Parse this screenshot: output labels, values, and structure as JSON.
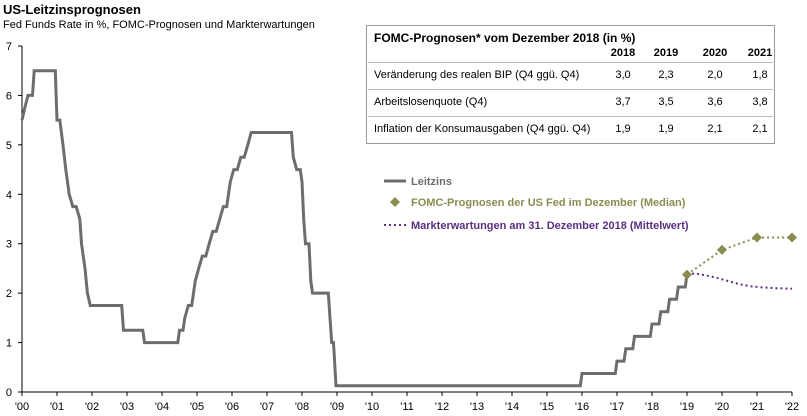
{
  "header": {
    "title": "US-Leitzinsprognosen",
    "subtitle": "Fed Funds Rate in %, FOMC-Prognosen und Markterwartungen"
  },
  "table": {
    "title": "FOMC-Prognosen* vom Dezember 2018 (in %)",
    "years": [
      "2018",
      "2019",
      "2020",
      "2021"
    ],
    "rows": [
      {
        "label": "Veränderung des realen BIP (Q4 ggü. Q4)",
        "values": [
          "3,0",
          "2,3",
          "2,0",
          "1,8"
        ]
      },
      {
        "label": "Arbeitslosenquote (Q4)",
        "values": [
          "3,7",
          "3,5",
          "3,6",
          "3,8"
        ]
      },
      {
        "label": "Inflation der Konsumausgaben (Q4 ggü. Q4)",
        "values": [
          "1,9",
          "1,9",
          "2,1",
          "2,1"
        ]
      }
    ]
  },
  "colors": {
    "leitzins": "#6d6d6d",
    "fomc": "#8a8c50",
    "markt": "#5b2f82"
  },
  "chart_data": {
    "type": "line",
    "x_tick_labels": [
      "'00",
      "'01",
      "'02",
      "'03",
      "'04",
      "'05",
      "'06",
      "'07",
      "'08",
      "'09",
      "'10",
      "'11",
      "'12",
      "'13",
      "'14",
      "'15",
      "'16",
      "'17",
      "'18",
      "'19",
      "'20",
      "'21",
      "'22"
    ],
    "x_range": [
      2000,
      2022
    ],
    "y_ticks": [
      "0",
      "1",
      "2",
      "3",
      "4",
      "5",
      "6",
      "7"
    ],
    "ylim": [
      0,
      7
    ],
    "legend": [
      {
        "label": "Leitzins",
        "color": "#6d6d6d"
      },
      {
        "label": "FOMC-Prognosen der US Fed im Dezember (Median)",
        "color": "#8a8c50"
      },
      {
        "label": "Markterwartungen am 31. Dezember 2018 (Mittelwert)",
        "color": "#5b2f82"
      }
    ],
    "series": [
      {
        "name": "Leitzins",
        "points": [
          [
            2000.0,
            5.5
          ],
          [
            2000.08,
            5.75
          ],
          [
            2000.17,
            6.0
          ],
          [
            2000.3,
            6.0
          ],
          [
            2000.35,
            6.5
          ],
          [
            2000.95,
            6.5
          ],
          [
            2001.0,
            5.5
          ],
          [
            2001.08,
            5.5
          ],
          [
            2001.17,
            5.0
          ],
          [
            2001.25,
            4.5
          ],
          [
            2001.35,
            4.0
          ],
          [
            2001.45,
            3.75
          ],
          [
            2001.55,
            3.75
          ],
          [
            2001.65,
            3.5
          ],
          [
            2001.7,
            3.0
          ],
          [
            2001.8,
            2.5
          ],
          [
            2001.87,
            2.0
          ],
          [
            2001.95,
            1.75
          ],
          [
            2002.85,
            1.75
          ],
          [
            2002.9,
            1.25
          ],
          [
            2003.45,
            1.25
          ],
          [
            2003.5,
            1.0
          ],
          [
            2004.45,
            1.0
          ],
          [
            2004.5,
            1.25
          ],
          [
            2004.6,
            1.25
          ],
          [
            2004.65,
            1.5
          ],
          [
            2004.75,
            1.75
          ],
          [
            2004.85,
            1.75
          ],
          [
            2004.95,
            2.25
          ],
          [
            2005.05,
            2.5
          ],
          [
            2005.15,
            2.75
          ],
          [
            2005.25,
            2.75
          ],
          [
            2005.35,
            3.0
          ],
          [
            2005.45,
            3.25
          ],
          [
            2005.55,
            3.25
          ],
          [
            2005.65,
            3.5
          ],
          [
            2005.75,
            3.75
          ],
          [
            2005.85,
            3.75
          ],
          [
            2005.95,
            4.25
          ],
          [
            2006.05,
            4.5
          ],
          [
            2006.15,
            4.5
          ],
          [
            2006.25,
            4.75
          ],
          [
            2006.35,
            4.75
          ],
          [
            2006.45,
            5.0
          ],
          [
            2006.55,
            5.25
          ],
          [
            2007.7,
            5.25
          ],
          [
            2007.75,
            4.75
          ],
          [
            2007.85,
            4.5
          ],
          [
            2007.95,
            4.5
          ],
          [
            2008.0,
            4.25
          ],
          [
            2008.05,
            3.5
          ],
          [
            2008.1,
            3.0
          ],
          [
            2008.2,
            3.0
          ],
          [
            2008.25,
            2.25
          ],
          [
            2008.3,
            2.0
          ],
          [
            2008.75,
            2.0
          ],
          [
            2008.8,
            1.5
          ],
          [
            2008.85,
            1.0
          ],
          [
            2008.9,
            1.0
          ],
          [
            2008.97,
            0.125
          ],
          [
            2015.95,
            0.125
          ],
          [
            2016.0,
            0.375
          ],
          [
            2016.95,
            0.375
          ],
          [
            2017.0,
            0.625
          ],
          [
            2017.2,
            0.625
          ],
          [
            2017.25,
            0.875
          ],
          [
            2017.45,
            0.875
          ],
          [
            2017.5,
            1.125
          ],
          [
            2017.95,
            1.125
          ],
          [
            2018.0,
            1.375
          ],
          [
            2018.2,
            1.375
          ],
          [
            2018.25,
            1.625
          ],
          [
            2018.45,
            1.625
          ],
          [
            2018.5,
            1.875
          ],
          [
            2018.7,
            1.875
          ],
          [
            2018.75,
            2.125
          ],
          [
            2018.95,
            2.125
          ],
          [
            2019.0,
            2.375
          ]
        ]
      },
      {
        "name": "FOMC-Prognosen der US Fed im Dezember (Median)",
        "points": [
          [
            2019.0,
            2.375
          ],
          [
            2020.0,
            2.875
          ],
          [
            2021.0,
            3.125
          ],
          [
            2022.0,
            3.125
          ]
        ]
      },
      {
        "name": "Markterwartungen am 31. Dezember 2018 (Mittelwert)",
        "points": [
          [
            2019.0,
            2.4
          ],
          [
            2019.3,
            2.39
          ],
          [
            2019.6,
            2.35
          ],
          [
            2019.9,
            2.3
          ],
          [
            2020.2,
            2.24
          ],
          [
            2020.5,
            2.18
          ],
          [
            2020.8,
            2.14
          ],
          [
            2021.1,
            2.12
          ],
          [
            2021.5,
            2.1
          ],
          [
            2022.0,
            2.09
          ]
        ]
      }
    ]
  }
}
